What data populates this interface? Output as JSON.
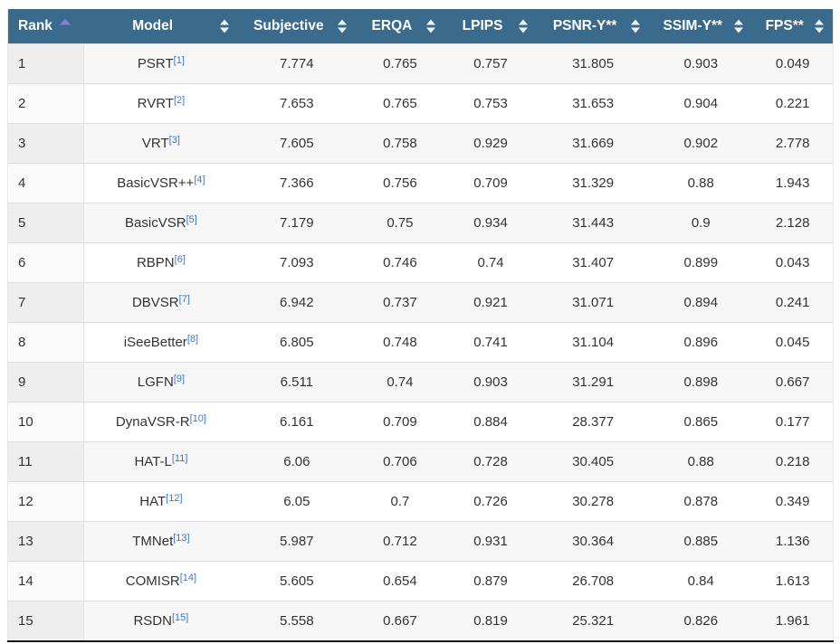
{
  "table": {
    "columns": [
      {
        "id": "rank",
        "label": "Rank",
        "sort_state": "ascending"
      },
      {
        "id": "model",
        "label": "Model",
        "sort_state": "none"
      },
      {
        "id": "subjective",
        "label": "Subjective",
        "sort_state": "none"
      },
      {
        "id": "erqa",
        "label": "ERQA",
        "sort_state": "none"
      },
      {
        "id": "lpips",
        "label": "LPIPS",
        "sort_state": "none"
      },
      {
        "id": "psnr_y",
        "label": "PSNR-Y**",
        "sort_state": "none"
      },
      {
        "id": "ssim_y",
        "label": "SSIM-Y**",
        "sort_state": "none"
      },
      {
        "id": "fps",
        "label": "FPS**",
        "sort_state": "none"
      }
    ],
    "rows": [
      {
        "rank": "1",
        "model": "PSRT",
        "cite": "[1]",
        "subjective": "7.774",
        "erqa": "0.765",
        "lpips": "0.757",
        "psnr_y": "31.805",
        "ssim_y": "0.903",
        "fps": "0.049"
      },
      {
        "rank": "2",
        "model": "RVRT",
        "cite": "[2]",
        "subjective": "7.653",
        "erqa": "0.765",
        "lpips": "0.753",
        "psnr_y": "31.653",
        "ssim_y": "0.904",
        "fps": "0.221"
      },
      {
        "rank": "3",
        "model": "VRT",
        "cite": "[3]",
        "subjective": "7.605",
        "erqa": "0.758",
        "lpips": "0.929",
        "psnr_y": "31.669",
        "ssim_y": "0.902",
        "fps": "2.778"
      },
      {
        "rank": "4",
        "model": "BasicVSR++",
        "cite": "[4]",
        "subjective": "7.366",
        "erqa": "0.756",
        "lpips": "0.709",
        "psnr_y": "31.329",
        "ssim_y": "0.88",
        "fps": "1.943"
      },
      {
        "rank": "5",
        "model": "BasicVSR",
        "cite": "[5]",
        "subjective": "7.179",
        "erqa": "0.75",
        "lpips": "0.934",
        "psnr_y": "31.443",
        "ssim_y": "0.9",
        "fps": "2.128"
      },
      {
        "rank": "6",
        "model": "RBPN",
        "cite": "[6]",
        "subjective": "7.093",
        "erqa": "0.746",
        "lpips": "0.74",
        "psnr_y": "31.407",
        "ssim_y": "0.899",
        "fps": "0.043"
      },
      {
        "rank": "7",
        "model": "DBVSR",
        "cite": "[7]",
        "subjective": "6.942",
        "erqa": "0.737",
        "lpips": "0.921",
        "psnr_y": "31.071",
        "ssim_y": "0.894",
        "fps": "0.241"
      },
      {
        "rank": "8",
        "model": "iSeeBetter",
        "cite": "[8]",
        "subjective": "6.805",
        "erqa": "0.748",
        "lpips": "0.741",
        "psnr_y": "31.104",
        "ssim_y": "0.896",
        "fps": "0.045"
      },
      {
        "rank": "9",
        "model": "LGFN",
        "cite": "[9]",
        "subjective": "6.511",
        "erqa": "0.74",
        "lpips": "0.903",
        "psnr_y": "31.291",
        "ssim_y": "0.898",
        "fps": "0.667"
      },
      {
        "rank": "10",
        "model": "DynaVSR-R",
        "cite": "[10]",
        "subjective": "6.161",
        "erqa": "0.709",
        "lpips": "0.884",
        "psnr_y": "28.377",
        "ssim_y": "0.865",
        "fps": "0.177"
      },
      {
        "rank": "11",
        "model": "HAT-L",
        "cite": "[11]",
        "subjective": "6.06",
        "erqa": "0.706",
        "lpips": "0.728",
        "psnr_y": "30.405",
        "ssim_y": "0.88",
        "fps": "0.218"
      },
      {
        "rank": "12",
        "model": "HAT",
        "cite": "[12]",
        "subjective": "6.05",
        "erqa": "0.7",
        "lpips": "0.726",
        "psnr_y": "30.278",
        "ssim_y": "0.878",
        "fps": "0.349"
      },
      {
        "rank": "13",
        "model": "TMNet",
        "cite": "[13]",
        "subjective": "5.987",
        "erqa": "0.712",
        "lpips": "0.931",
        "psnr_y": "30.364",
        "ssim_y": "0.885",
        "fps": "1.136"
      },
      {
        "rank": "14",
        "model": "COMISR",
        "cite": "[14]",
        "subjective": "5.605",
        "erqa": "0.654",
        "lpips": "0.879",
        "psnr_y": "26.708",
        "ssim_y": "0.84",
        "fps": "1.613"
      },
      {
        "rank": "15",
        "model": "RSDN",
        "cite": "[15]",
        "subjective": "5.558",
        "erqa": "0.667",
        "lpips": "0.819",
        "psnr_y": "25.321",
        "ssim_y": "0.826",
        "fps": "1.961"
      }
    ],
    "colors": {
      "header_bg": "#3a6a8c",
      "header_text": "#ffffff",
      "sort_icon_active": "#887fd2",
      "sort_icon_inactive": "#ffffff",
      "citation_link": "#3378d3",
      "row_stripe": "#f7f7f7",
      "rank_column_stripe": "#eeeeee",
      "rank_column_plain": "#fafafa",
      "row_border": "#dddddd",
      "bottom_border": "#181818",
      "cell_text": "#333333"
    }
  }
}
